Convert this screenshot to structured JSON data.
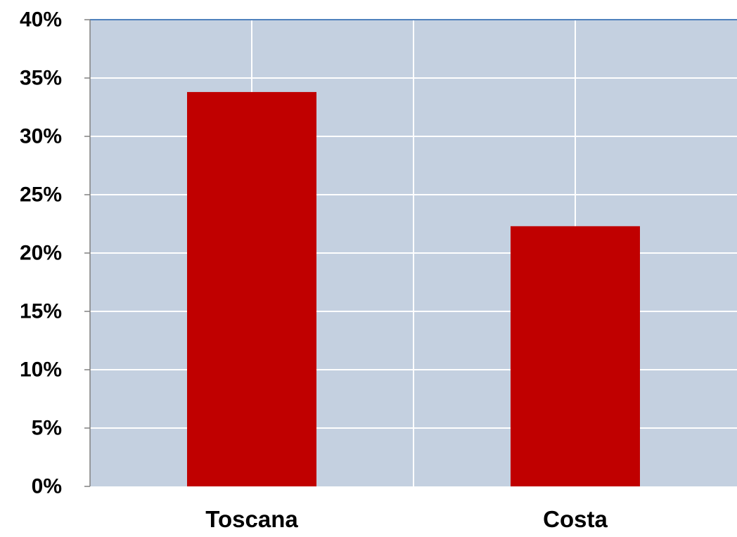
{
  "chart_data": {
    "type": "bar",
    "title": "",
    "xlabel": "",
    "ylabel": "",
    "categories": [
      "Toscana",
      "Costa"
    ],
    "values": [
      0.338,
      0.223
    ],
    "ylim": [
      0,
      0.4
    ],
    "y_ticks": [
      0,
      0.05,
      0.1,
      0.15,
      0.2,
      0.25,
      0.3,
      0.35,
      0.4
    ],
    "y_tick_labels": [
      "0%",
      "5%",
      "10%",
      "15%",
      "20%",
      "25%",
      "30%",
      "35%",
      "40%"
    ],
    "grid": true,
    "legend": "none",
    "colors": {
      "bar": "#c00000",
      "plot_background": "#c4d0e0",
      "gridline": "#ffffff",
      "axis": "#808080",
      "top_border": "#4f81bd"
    }
  }
}
